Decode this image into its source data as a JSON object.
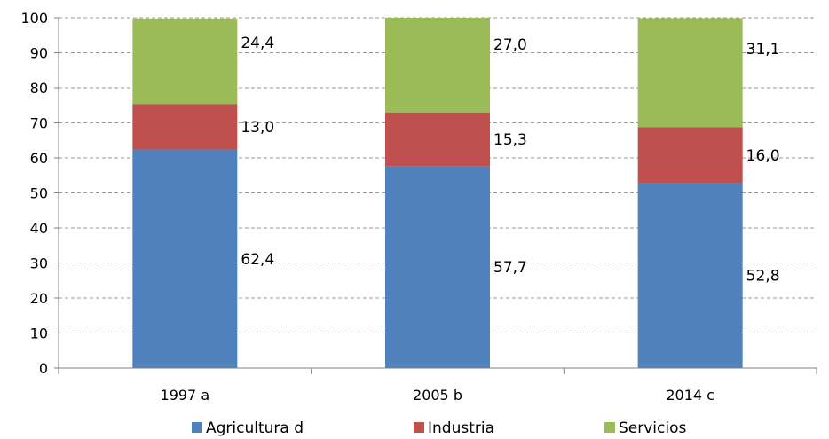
{
  "chart_data": {
    "type": "bar",
    "stacked": true,
    "categories": [
      "1997 a",
      "2005 b",
      "2014 c"
    ],
    "series": [
      {
        "name": "Agricultura d",
        "values": [
          62.4,
          57.7,
          52.8
        ],
        "labels": [
          "62,4",
          "57,7",
          "52,8"
        ],
        "color": "#4F81BD"
      },
      {
        "name": "Industria",
        "values": [
          13.0,
          15.3,
          16.0
        ],
        "labels": [
          "13,0",
          "15,3",
          "16,0"
        ],
        "color": "#C0504D"
      },
      {
        "name": "Servicios",
        "values": [
          24.4,
          27.0,
          31.1
        ],
        "labels": [
          "24,4",
          "27,0",
          "31,1"
        ],
        "color": "#9BBB59"
      }
    ],
    "title": "",
    "xlabel": "",
    "ylabel": "",
    "ylim": [
      0,
      100
    ],
    "yticks": [
      "0",
      "10",
      "20",
      "30",
      "40",
      "50",
      "60",
      "70",
      "80",
      "90",
      "100"
    ],
    "grid": "horizontal-dashed",
    "legend_position": "bottom"
  }
}
